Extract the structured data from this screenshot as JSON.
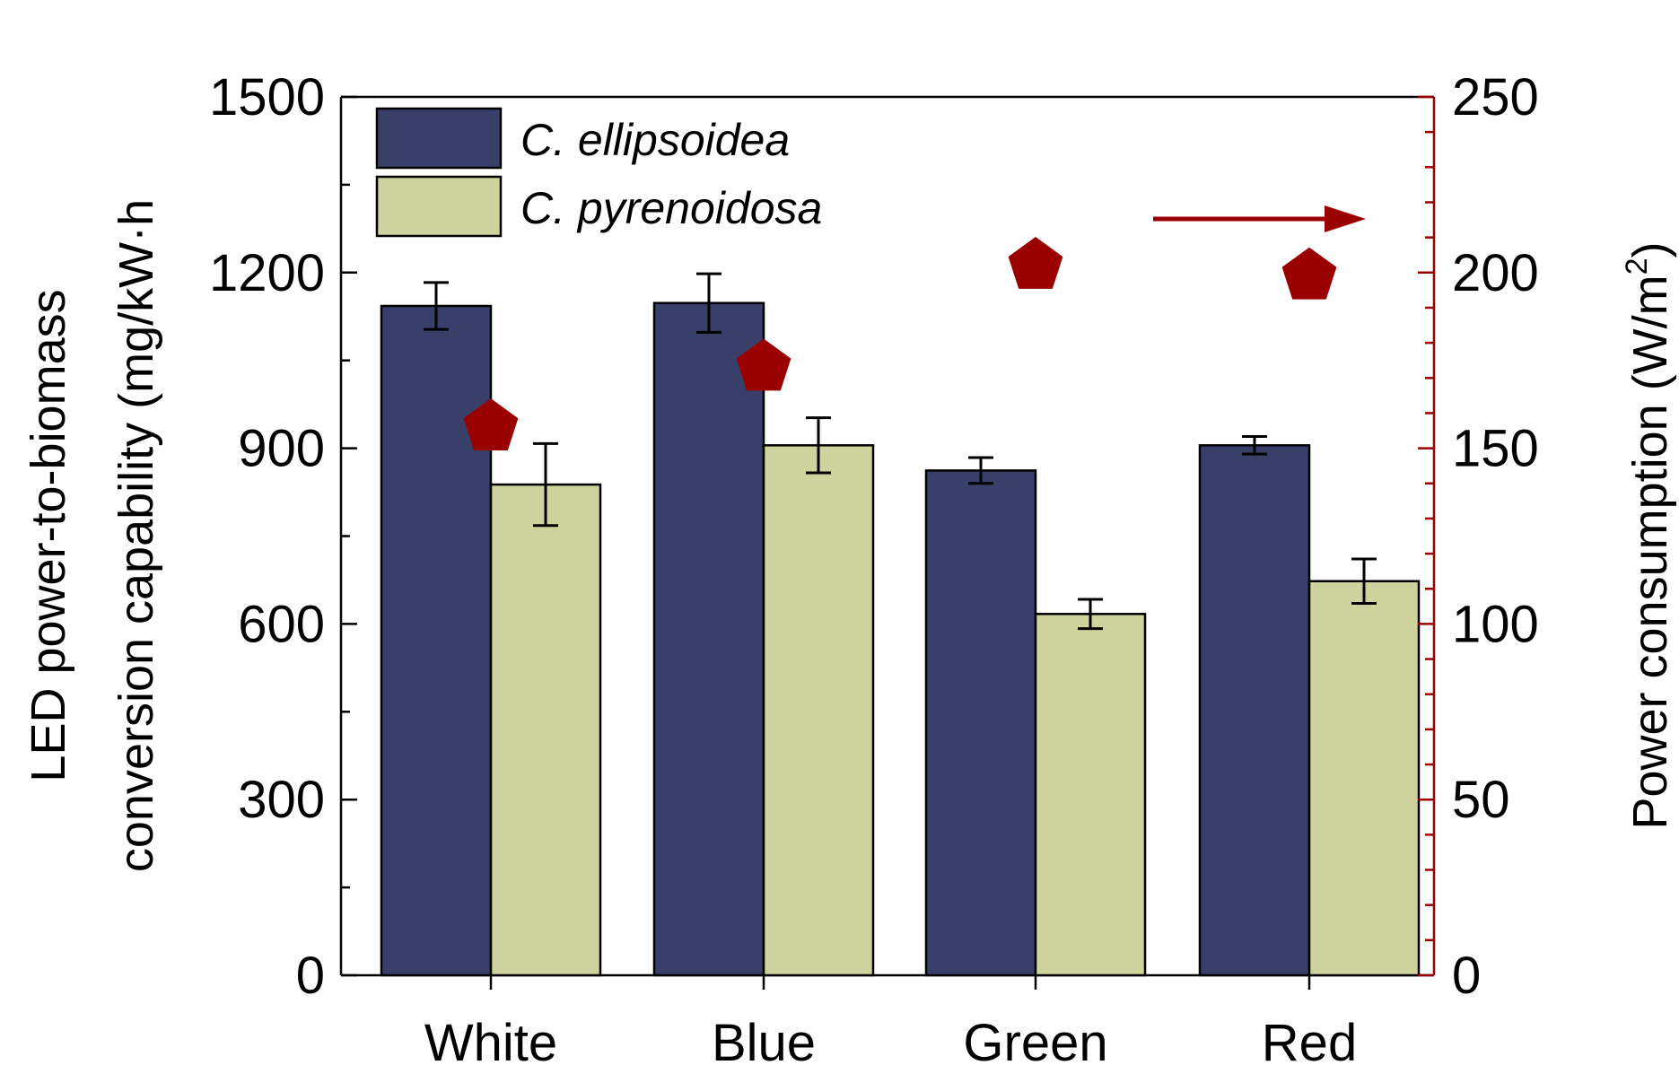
{
  "chart_data": {
    "type": "bar",
    "categories": [
      "White",
      "Blue",
      "Green",
      "Red"
    ],
    "series": [
      {
        "name": "C. ellipsoidea",
        "values": [
          1143,
          1148,
          862,
          905
        ],
        "errors": [
          40,
          50,
          22,
          15
        ],
        "color": "#383f68"
      },
      {
        "name": "C. pyrenoidosa",
        "values": [
          838,
          905,
          617,
          673
        ],
        "errors": [
          70,
          47,
          25,
          38
        ],
        "color": "#ced39d"
      }
    ],
    "secondary_series": {
      "axis": "right",
      "marker": "pentagon",
      "color": "#9b0000",
      "values": [
        156,
        173,
        202,
        199
      ]
    },
    "ylabel_lines": [
      "LED power-to-biomass",
      "conversion capability (mg/kW·h"
    ],
    "y2label": "Power consumption (W/m",
    "y2label_sup": "2",
    "ylim": [
      0,
      1500
    ],
    "y2lim": [
      0,
      250
    ],
    "yticks": [
      "0",
      "300",
      "600",
      "900",
      "1200",
      "1500"
    ],
    "y2ticks": [
      "0",
      "50",
      "100",
      "150",
      "200",
      "250"
    ],
    "legend_position": "top-left",
    "arrow_direction": "right",
    "colors": {
      "axis": "#000000",
      "secondary_axis": "#9b0000"
    }
  }
}
